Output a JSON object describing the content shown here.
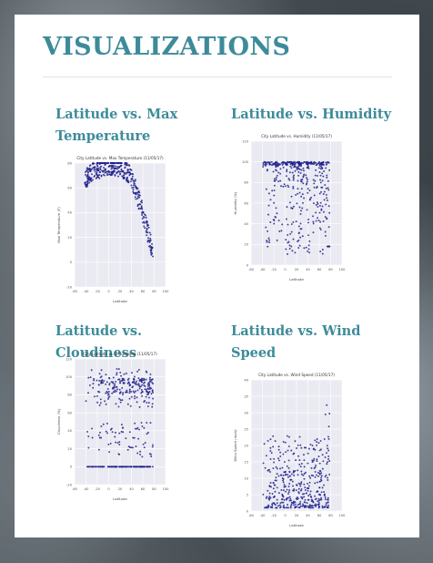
{
  "page_title": "VISUALIZATIONS",
  "panels": [
    {
      "title_line1": "Latitude vs. Max",
      "title_line2": "Temperature"
    },
    {
      "title_line1": "Latitude vs. Humidity",
      "title_line2": ""
    },
    {
      "title_line1": "Latitude vs. Cloudiness",
      "title_line2": ""
    },
    {
      "title_line1": "Latitude vs. Wind",
      "title_line2": "Speed"
    }
  ],
  "chart_data": [
    {
      "type": "scatter",
      "title": "City Latitude vs. Max Temperature (11/05/17)",
      "xlabel": "Latitude",
      "ylabel": "Max Temperature (F)",
      "xlim": [
        -60,
        100
      ],
      "ylim": [
        -20,
        80
      ],
      "xticks": [
        -60,
        -40,
        -20,
        0,
        20,
        40,
        60,
        80,
        100
      ],
      "yticks": [
        -20,
        0,
        20,
        40,
        60,
        80
      ],
      "pattern": "arch",
      "color": "#1f1f8c",
      "grid": true
    },
    {
      "type": "scatter",
      "title": "City Latitude vs. Humidity (11/05/17)",
      "xlabel": "Latitude",
      "ylabel": "Humidity (%)",
      "xlim": [
        -60,
        100
      ],
      "ylim": [
        0,
        120
      ],
      "xticks": [
        -60,
        -40,
        -20,
        0,
        20,
        40,
        60,
        80,
        100
      ],
      "yticks": [
        0,
        20,
        40,
        60,
        80,
        100,
        120
      ],
      "pattern": "humidity",
      "color": "#1f1f8c",
      "grid": true
    },
    {
      "type": "scatter",
      "title": "City Latitude vs. Cloudiness (11/05/17)",
      "xlabel": "Latitude",
      "ylabel": "Cloudiness (%)",
      "xlim": [
        -60,
        100
      ],
      "ylim": [
        -20,
        120
      ],
      "xticks": [
        -60,
        -40,
        -20,
        0,
        20,
        40,
        60,
        80,
        100
      ],
      "yticks": [
        -20,
        0,
        20,
        40,
        60,
        80,
        100,
        120
      ],
      "pattern": "cloudiness",
      "color": "#1f1f8c",
      "grid": true
    },
    {
      "type": "scatter",
      "title": "City Latitude vs. Wind Speed (11/05/17)",
      "xlabel": "Latitude",
      "ylabel": "Wind Speed (mph)",
      "xlim": [
        -60,
        100
      ],
      "ylim": [
        0,
        40
      ],
      "xticks": [
        -60,
        -40,
        -20,
        0,
        20,
        40,
        60,
        80,
        100
      ],
      "yticks": [
        0,
        5,
        10,
        15,
        20,
        25,
        30,
        35,
        40
      ],
      "pattern": "wind",
      "color": "#1f1f8c",
      "grid": true
    }
  ]
}
